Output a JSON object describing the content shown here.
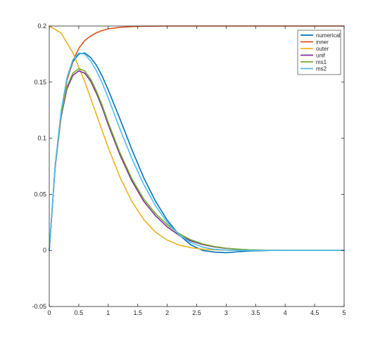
{
  "chart_data": {
    "type": "line",
    "title": "",
    "xlabel": "",
    "ylabel": "",
    "xlim": [
      0,
      5
    ],
    "ylim": [
      -0.05,
      0.2
    ],
    "xticks": [
      0,
      0.5,
      1,
      1.5,
      2,
      2.5,
      3,
      3.5,
      4,
      4.5,
      5
    ],
    "xtick_labels": [
      "0",
      "0.5",
      "1",
      "1.5",
      "2",
      "2.5",
      "3",
      "3.5",
      "4",
      "4.5",
      "5"
    ],
    "yticks": [
      -0.05,
      0,
      0.05,
      0.1,
      0.15,
      0.2
    ],
    "ytick_labels": [
      "-0.05",
      "0",
      "0.05",
      "0.1",
      "0.15",
      "0.2"
    ],
    "grid": false,
    "legend_position": "top-right",
    "series": [
      {
        "name": "numerical",
        "color": "#0072BD",
        "x": [
          0,
          0.1,
          0.2,
          0.3,
          0.4,
          0.5,
          0.6,
          0.7,
          0.8,
          0.9,
          1.0,
          1.2,
          1.4,
          1.6,
          1.8,
          2.0,
          2.2,
          2.4,
          2.6,
          2.8,
          3.0,
          3.2,
          3.4,
          3.6,
          3.8,
          4.0,
          4.5,
          5.0
        ],
        "y": [
          0,
          0.075,
          0.122,
          0.152,
          0.168,
          0.175,
          0.176,
          0.172,
          0.165,
          0.155,
          0.143,
          0.117,
          0.09,
          0.065,
          0.044,
          0.027,
          0.014,
          0.005,
          0.0,
          -0.0015,
          -0.002,
          -0.0012,
          -0.0005,
          -0.0002,
          0,
          0,
          0,
          0
        ]
      },
      {
        "name": "inner",
        "color": "#D95319",
        "x": [
          0,
          0.1,
          0.2,
          0.3,
          0.4,
          0.5,
          0.6,
          0.7,
          0.8,
          0.9,
          1.0,
          1.2,
          1.4,
          1.6,
          2.0,
          3.0,
          4.0,
          5.0
        ],
        "y": [
          0,
          0.075,
          0.122,
          0.152,
          0.169,
          0.18,
          0.187,
          0.191,
          0.194,
          0.196,
          0.1975,
          0.1988,
          0.1995,
          0.1998,
          0.2,
          0.2,
          0.2,
          0.2
        ]
      },
      {
        "name": "outer",
        "color": "#EDB120",
        "x": [
          0,
          0.2,
          0.4,
          0.6,
          0.8,
          1.0,
          1.2,
          1.4,
          1.6,
          1.8,
          2.0,
          2.2,
          2.4,
          2.6,
          2.8,
          3.0,
          3.2,
          3.4,
          3.6,
          4.0,
          4.5,
          5.0
        ],
        "y": [
          0.2,
          0.1938,
          0.1763,
          0.1506,
          0.1211,
          0.0916,
          0.0652,
          0.0437,
          0.0276,
          0.0164,
          0.0092,
          0.0048,
          0.0024,
          0.0011,
          0.0005,
          0.0002,
          0.0001,
          0,
          0,
          0,
          0,
          0
        ]
      },
      {
        "name": "unif",
        "color": "#7E2F8E",
        "x": [
          0,
          0.1,
          0.2,
          0.3,
          0.4,
          0.5,
          0.6,
          0.7,
          0.8,
          0.9,
          1.0,
          1.2,
          1.4,
          1.6,
          1.8,
          2.0,
          2.2,
          2.4,
          2.6,
          2.8,
          3.0,
          3.2,
          3.4,
          3.6,
          4.0,
          4.5,
          5.0
        ],
        "y": [
          0,
          0.074,
          0.119,
          0.144,
          0.156,
          0.16,
          0.158,
          0.151,
          0.14,
          0.127,
          0.112,
          0.085,
          0.062,
          0.044,
          0.031,
          0.021,
          0.0135,
          0.0085,
          0.0052,
          0.0031,
          0.0018,
          0.001,
          0.0005,
          0.0002,
          0,
          0,
          0
        ]
      },
      {
        "name": "ms1",
        "color": "#77AC30",
        "x": [
          0,
          0.1,
          0.2,
          0.3,
          0.4,
          0.5,
          0.6,
          0.7,
          0.8,
          0.9,
          1.0,
          1.2,
          1.4,
          1.6,
          1.8,
          2.0,
          2.2,
          2.4,
          2.6,
          2.8,
          3.0,
          3.2,
          3.4,
          3.6,
          4.0,
          4.5,
          5.0
        ],
        "y": [
          0,
          0.075,
          0.121,
          0.146,
          0.158,
          0.162,
          0.16,
          0.153,
          0.142,
          0.129,
          0.114,
          0.087,
          0.064,
          0.046,
          0.033,
          0.023,
          0.015,
          0.0095,
          0.0058,
          0.0035,
          0.002,
          0.0011,
          0.0006,
          0.0003,
          0,
          0,
          0
        ]
      },
      {
        "name": "ms2",
        "color": "#4DBEEE",
        "x": [
          0,
          0.1,
          0.2,
          0.3,
          0.4,
          0.5,
          0.6,
          0.7,
          0.8,
          0.9,
          1.0,
          1.2,
          1.4,
          1.6,
          1.8,
          2.0,
          2.2,
          2.4,
          2.6,
          2.8,
          3.0,
          3.2,
          3.4,
          3.6,
          4.0,
          4.5,
          5.0
        ],
        "y": [
          0,
          0.076,
          0.124,
          0.154,
          0.17,
          0.176,
          0.175,
          0.169,
          0.16,
          0.149,
          0.136,
          0.108,
          0.082,
          0.059,
          0.04,
          0.025,
          0.014,
          0.007,
          0.003,
          0.001,
          0.0003,
          0,
          0,
          0,
          0,
          0,
          0
        ]
      }
    ]
  }
}
